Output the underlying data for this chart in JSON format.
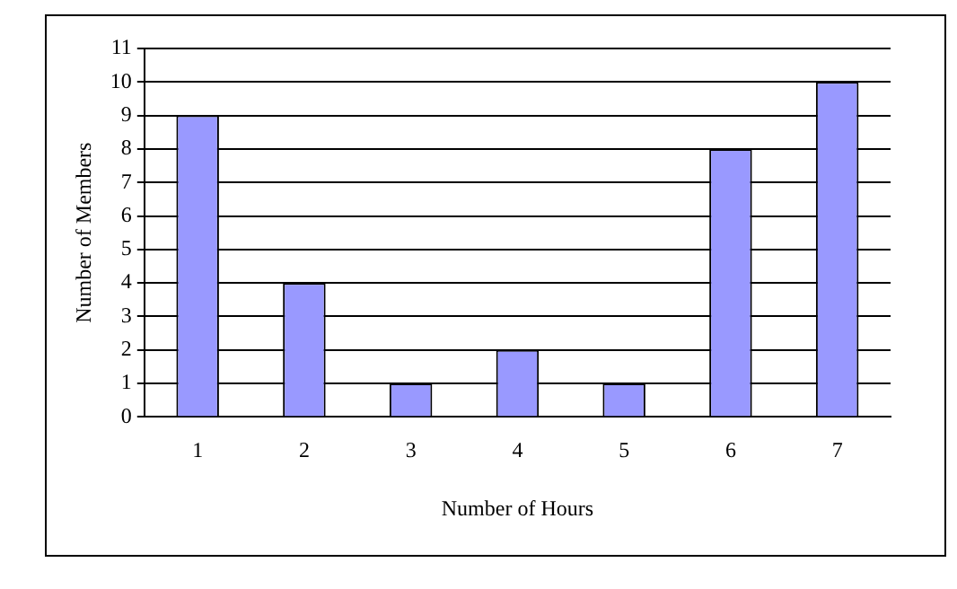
{
  "chart_data": {
    "type": "bar",
    "xlabel": "Number of Hours",
    "ylabel": "Number of Members",
    "categories": [
      "1",
      "2",
      "3",
      "4",
      "5",
      "6",
      "7"
    ],
    "values": [
      9,
      4,
      1,
      2,
      1,
      8,
      10
    ],
    "color": "#9999ff",
    "ylim": [
      0,
      11
    ],
    "yticks": [
      0,
      1,
      2,
      3,
      4,
      5,
      6,
      7,
      8,
      9,
      10,
      11
    ],
    "grid": "y",
    "legend": false
  }
}
